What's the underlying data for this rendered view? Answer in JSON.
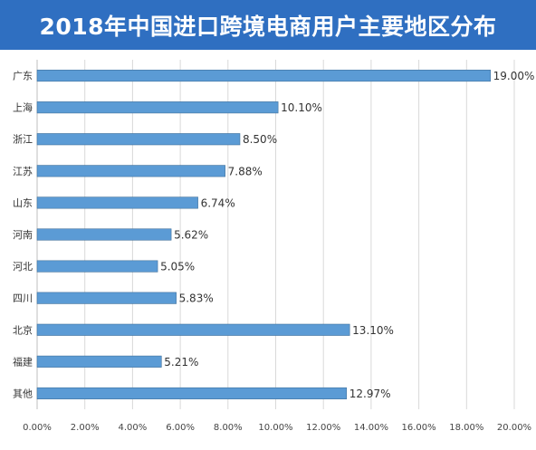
{
  "chart_data": {
    "type": "bar",
    "orientation": "horizontal",
    "title": "2018年中国进口跨境电商用户主要地区分布",
    "categories": [
      "广东",
      "上海",
      "浙江",
      "江苏",
      "山东",
      "河南",
      "河北",
      "四川",
      "北京",
      "福建",
      "其他"
    ],
    "values": [
      19.0,
      10.1,
      8.5,
      7.88,
      6.74,
      5.62,
      5.05,
      5.83,
      13.1,
      5.21,
      12.97
    ],
    "value_labels": [
      "19.00%",
      "10.10%",
      "8.50%",
      "7.88%",
      "6.74%",
      "5.62%",
      "5.05%",
      "5.83%",
      "13.10%",
      "5.21%",
      "12.97%"
    ],
    "xlim": [
      0,
      20
    ],
    "x_ticks": [
      0,
      2,
      4,
      6,
      8,
      10,
      12,
      14,
      16,
      18,
      20
    ],
    "x_tick_labels": [
      "0.00%",
      "2.00%",
      "4.00%",
      "6.00%",
      "8.00%",
      "10.00%",
      "12.00%",
      "14.00%",
      "16.00%",
      "18.00%",
      "20.00%"
    ],
    "xlabel": "",
    "ylabel": "",
    "grid": true,
    "legend": "none",
    "colors": {
      "bar": "#5b9bd5",
      "bar_edge": "#41719c",
      "title_bg": "#2f6fc1",
      "grid": "#d9d9d9"
    }
  }
}
